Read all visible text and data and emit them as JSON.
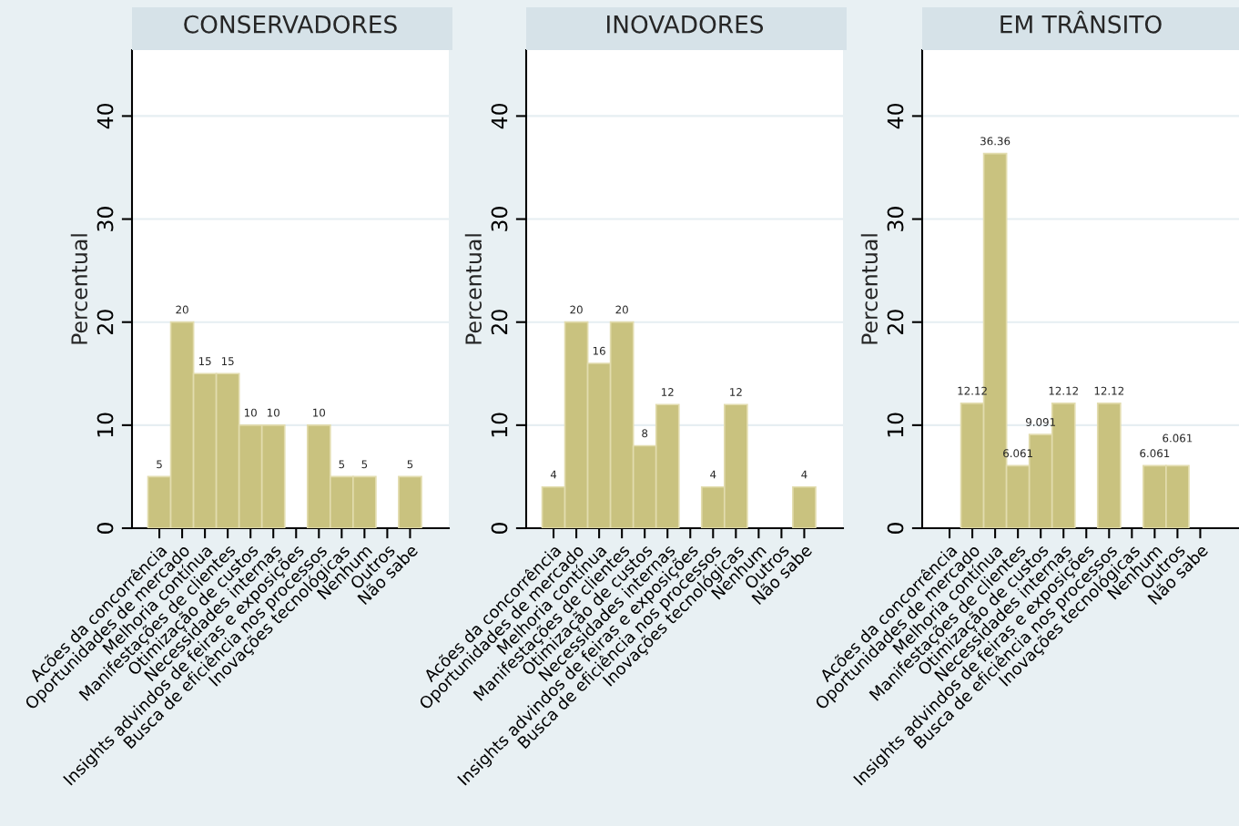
{
  "chart_data": [
    {
      "type": "bar",
      "title": "CONSERVADORES",
      "ylabel": "Percentual",
      "categories": [
        "Acões da concorrência",
        "Oportunidades de mercado",
        "Melhoria contínua",
        "Manifestações de clientes",
        "Otimização de custos",
        "Necessidades internas",
        "Insights advindos de feiras e exposições",
        "Busca de eficiência nos processos",
        "Inovações tecnológicas",
        "Nenhum",
        "Outros",
        "Não sabe"
      ],
      "values": [
        5,
        20,
        15,
        15,
        10,
        10,
        null,
        10,
        5,
        5,
        null,
        5
      ],
      "color": "#c9c27f",
      "ylim": [
        0,
        46.4
      ],
      "yticks": [
        0,
        10,
        20,
        30,
        40
      ],
      "grid": "y",
      "data_labels": true
    },
    {
      "type": "bar",
      "title": "INOVADORES",
      "ylabel": "Percentual",
      "categories": [
        "Acões da concorrência",
        "Oportunidades de mercado",
        "Melhoria contínua",
        "Manifestações de clientes",
        "Otimização de custos",
        "Necessidades internas",
        "Insights advindos de feiras e exposições",
        "Busca de eficiência nos processos",
        "Inovações tecnológicas",
        "Nenhum",
        "Outros",
        "Não sabe"
      ],
      "values": [
        4,
        20,
        16,
        20,
        8,
        12,
        null,
        4,
        12,
        null,
        null,
        4
      ],
      "color": "#c9c27f",
      "ylim": [
        0,
        46.4
      ],
      "yticks": [
        0,
        10,
        20,
        30,
        40
      ],
      "grid": "y",
      "data_labels": true
    },
    {
      "type": "bar",
      "title": "EM TRÂNSITO",
      "ylabel": "Percentual",
      "categories": [
        "Acões da concorrência",
        "Oportunidades de mercado",
        "Melhoria contínua",
        "Manifestações de clientes",
        "Otimização de custos",
        "Necessidades internas",
        "Insights advindos de feiras e exposições",
        "Busca de eficiência nos processos",
        "Inovações tecnológicas",
        "Nenhum",
        "Outros",
        "Não sabe"
      ],
      "values": [
        null,
        12.12,
        36.36,
        6.061,
        9.091,
        12.12,
        null,
        12.12,
        null,
        6.061,
        6.061,
        null
      ],
      "color": "#c9c27f",
      "ylim": [
        0,
        46.4
      ],
      "yticks": [
        0,
        10,
        20,
        30,
        40
      ],
      "grid": "y",
      "data_labels": true
    }
  ]
}
